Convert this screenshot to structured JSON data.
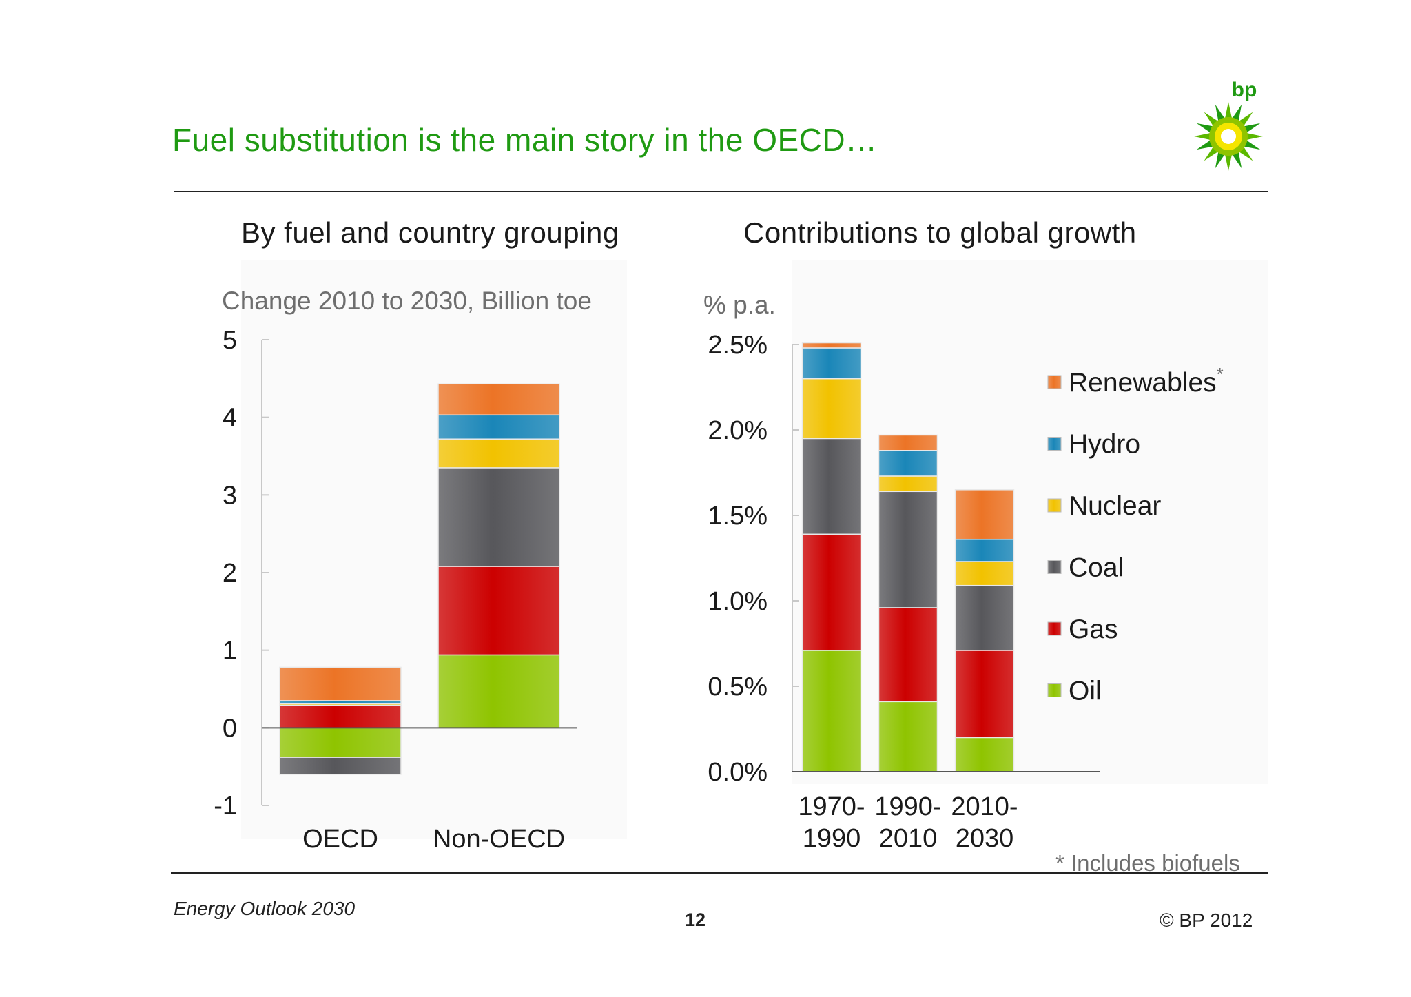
{
  "slide": {
    "title": "Fuel substitution is the main story in the OECD…",
    "footer_left": "Energy Outlook 2030",
    "page_number": "12",
    "copyright": "© BP 2012",
    "footnote": "* Includes biofuels",
    "logo_text": "bp"
  },
  "colors": {
    "title_green": "#1f9a12",
    "Renewables": "#ec7426",
    "Hydro": "#1a86b8",
    "Nuclear": "#f2c200",
    "Coal": "#57575b",
    "Gas": "#cc0000",
    "Oil": "#8fc400"
  },
  "chart_data": [
    {
      "type": "bar",
      "stacked": true,
      "title": "By fuel and country grouping",
      "ylabel": "Change 2010 to 2030, Billion toe",
      "categories": [
        "OECD",
        "Non-OECD"
      ],
      "ylim": [
        -1,
        5
      ],
      "yticks": [
        "5",
        "4",
        "3",
        "2",
        "1",
        "0",
        "-1"
      ],
      "series": [
        {
          "name": "Oil",
          "values": [
            -0.38,
            0.94
          ]
        },
        {
          "name": "Gas",
          "values": [
            0.29,
            1.14
          ]
        },
        {
          "name": "Coal",
          "values": [
            -0.22,
            1.27
          ]
        },
        {
          "name": "Nuclear",
          "values": [
            0.02,
            0.37
          ]
        },
        {
          "name": "Hydro",
          "values": [
            0.04,
            0.31
          ]
        },
        {
          "name": "Renewables",
          "values": [
            0.43,
            0.4
          ]
        }
      ]
    },
    {
      "type": "bar",
      "stacked": true,
      "title": "Contributions to global growth",
      "ylabel": "% p.a.",
      "categories": [
        [
          "1970-",
          "1990"
        ],
        [
          "1990-",
          "2010"
        ],
        [
          "2010-",
          "2030"
        ]
      ],
      "ylim": [
        0,
        2.5
      ],
      "yticks": [
        "2.5%",
        "2.0%",
        "1.5%",
        "1.0%",
        "0.5%",
        "0.0%"
      ],
      "legend_placement": "right",
      "legend_superscript": {
        "Renewables": "*"
      },
      "series": [
        {
          "name": "Oil",
          "values": [
            0.71,
            0.41,
            0.2
          ]
        },
        {
          "name": "Gas",
          "values": [
            0.68,
            0.55,
            0.51
          ]
        },
        {
          "name": "Coal",
          "values": [
            0.56,
            0.68,
            0.38
          ]
        },
        {
          "name": "Nuclear",
          "values": [
            0.35,
            0.09,
            0.14
          ]
        },
        {
          "name": "Hydro",
          "values": [
            0.18,
            0.15,
            0.13
          ]
        },
        {
          "name": "Renewables",
          "values": [
            0.03,
            0.09,
            0.29
          ]
        }
      ],
      "legend": [
        "Renewables",
        "Hydro",
        "Nuclear",
        "Coal",
        "Gas",
        "Oil"
      ]
    }
  ]
}
